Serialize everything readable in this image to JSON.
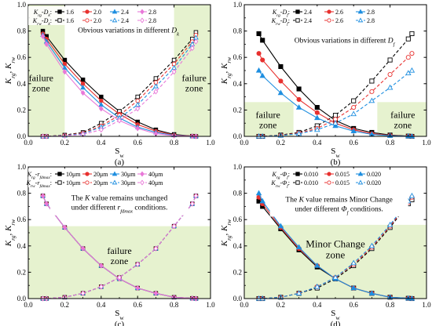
{
  "colors": {
    "zone_fill": "#e6f2cf",
    "axis": "#000000",
    "note_box": "#ffffff"
  },
  "chart_data": [
    {
      "id": "a",
      "type": "line",
      "caption": "(a)",
      "xlabel_main": "S",
      "xlabel_sub": "w",
      "ylabel": [
        [
          "K",
          "rg",
          ""
        ],
        [
          ", ",
          "",
          ""
        ],
        [
          "K",
          "rw",
          ""
        ]
      ],
      "xlim": [
        0,
        1
      ],
      "ylim": [
        0,
        1
      ],
      "xticks": [
        0.0,
        0.2,
        0.4,
        0.6,
        0.8,
        1.0
      ],
      "yticks": [
        0.0,
        0.2,
        0.4,
        0.6,
        0.8,
        1.0
      ],
      "zones": [
        {
          "x0": 0.0,
          "x1": 0.2,
          "y0": 0,
          "y1": 1
        },
        {
          "x0": 0.8,
          "x1": 1.0,
          "y0": 0,
          "y1": 1
        }
      ],
      "zone_labels": [
        {
          "lines": [
            "failure",
            "zone"
          ],
          "x": 0.07,
          "y": 0.42
        },
        {
          "lines": [
            "failure",
            "zone"
          ],
          "x": 0.91,
          "y": 0.42
        }
      ],
      "annotation": {
        "lines": [
          [
            [
              "Obvious variations in different ",
              "",
              ""
            ],
            [
              "D",
              "k",
              ""
            ]
          ]
        ],
        "x": 0.55,
        "y": 0.79,
        "box": false
      },
      "legend": {
        "rows": [
          [
            [
              "K",
              "rg",
              ""
            ],
            [
              "-",
              "",
              ""
            ],
            [
              "D",
              "k",
              ""
            ],
            [
              ":",
              "",
              ""
            ]
          ],
          [
            [
              "K",
              "rw",
              ""
            ],
            [
              "-",
              "",
              ""
            ],
            [
              "D",
              "k",
              ""
            ],
            [
              ":",
              "",
              ""
            ]
          ]
        ],
        "entries": [
          "1.6",
          "2.0",
          "2.4",
          "2.8"
        ],
        "colors": [
          "#000000",
          "#e8312f",
          "#1f8fe0",
          "#e878d8"
        ],
        "markers": [
          "square",
          "circle",
          "triangle",
          "diamond"
        ]
      },
      "x": [
        0.08,
        0.1,
        0.2,
        0.3,
        0.4,
        0.5,
        0.6,
        0.7,
        0.8,
        0.9,
        0.92
      ],
      "krg": [
        [
          0.8,
          0.76,
          0.58,
          0.43,
          0.3,
          0.19,
          0.11,
          0.05,
          0.015,
          0.002,
          0.0
        ],
        [
          0.78,
          0.74,
          0.55,
          0.4,
          0.27,
          0.17,
          0.09,
          0.04,
          0.01,
          0.002,
          0.0
        ],
        [
          0.77,
          0.72,
          0.52,
          0.37,
          0.24,
          0.14,
          0.07,
          0.03,
          0.008,
          0.001,
          0.0
        ],
        [
          0.76,
          0.7,
          0.49,
          0.33,
          0.21,
          0.12,
          0.06,
          0.02,
          0.005,
          0.001,
          0.0
        ]
      ],
      "krw": [
        [
          0.0,
          0.0,
          0.01,
          0.03,
          0.1,
          0.19,
          0.3,
          0.44,
          0.58,
          0.74,
          0.79
        ],
        [
          0.0,
          0.0,
          0.008,
          0.025,
          0.08,
          0.16,
          0.27,
          0.41,
          0.55,
          0.72,
          0.77
        ],
        [
          0.0,
          0.0,
          0.006,
          0.02,
          0.07,
          0.14,
          0.24,
          0.38,
          0.52,
          0.7,
          0.75
        ],
        [
          0.0,
          0.0,
          0.004,
          0.015,
          0.05,
          0.12,
          0.21,
          0.34,
          0.49,
          0.67,
          0.72
        ]
      ]
    },
    {
      "id": "b",
      "type": "line",
      "caption": "(b)",
      "xlabel_main": "S",
      "xlabel_sub": "w",
      "ylabel": [
        [
          "K",
          "rg",
          ""
        ],
        [
          ", ",
          "",
          ""
        ],
        [
          "K",
          "rw",
          ""
        ]
      ],
      "xlim": [
        0,
        1
      ],
      "ylim": [
        0,
        1
      ],
      "xticks": [
        0.0,
        0.2,
        0.4,
        0.6,
        0.8,
        1.0
      ],
      "yticks": [
        0.0,
        0.2,
        0.4,
        0.6,
        0.8,
        1.0
      ],
      "zones": [
        {
          "x0": 0.0,
          "x1": 0.27,
          "y0": 0,
          "y1": 0.26
        },
        {
          "x0": 0.73,
          "x1": 1.0,
          "y0": 0,
          "y1": 0.26
        }
      ],
      "zone_labels": [
        {
          "lines": [
            "failure",
            "zone"
          ],
          "x": 0.13,
          "y": 0.14
        },
        {
          "lines": [
            "failure",
            "zone"
          ],
          "x": 0.87,
          "y": 0.14
        }
      ],
      "annotation": {
        "lines": [
          [
            [
              "Obvious variations in different ",
              "",
              ""
            ],
            [
              "D",
              "f",
              ""
            ]
          ]
        ],
        "x": 0.55,
        "y": 0.71,
        "box": false
      },
      "legend": {
        "rows": [
          [
            [
              "K",
              "rg",
              ""
            ],
            [
              "-",
              "",
              ""
            ],
            [
              "D",
              "f",
              ""
            ],
            [
              ":",
              "",
              ""
            ]
          ],
          [
            [
              "K",
              "rw",
              ""
            ],
            [
              "-",
              "",
              ""
            ],
            [
              "D",
              "f",
              ""
            ],
            [
              ":",
              "",
              ""
            ]
          ]
        ],
        "entries": [
          "2.4",
          "2.6",
          "2.8"
        ],
        "colors": [
          "#000000",
          "#e8312f",
          "#1f8fe0"
        ],
        "markers": [
          "square",
          "circle",
          "triangle"
        ]
      },
      "x": [
        0.08,
        0.1,
        0.2,
        0.3,
        0.4,
        0.5,
        0.6,
        0.7,
        0.8,
        0.9,
        0.92
      ],
      "krg": [
        [
          0.78,
          0.73,
          0.53,
          0.36,
          0.22,
          0.12,
          0.06,
          0.03,
          0.01,
          0.002,
          0.0
        ],
        [
          0.63,
          0.58,
          0.42,
          0.28,
          0.18,
          0.1,
          0.05,
          0.02,
          0.007,
          0.001,
          0.0
        ],
        [
          0.5,
          0.46,
          0.33,
          0.22,
          0.14,
          0.08,
          0.04,
          0.015,
          0.005,
          0.001,
          0.0
        ]
      ],
      "krw": [
        [
          0.0,
          0.0,
          0.01,
          0.03,
          0.08,
          0.16,
          0.27,
          0.42,
          0.58,
          0.74,
          0.78
        ],
        [
          0.0,
          0.0,
          0.008,
          0.025,
          0.06,
          0.13,
          0.22,
          0.34,
          0.47,
          0.6,
          0.63
        ],
        [
          0.0,
          0.0,
          0.006,
          0.02,
          0.05,
          0.1,
          0.17,
          0.27,
          0.37,
          0.48,
          0.5
        ]
      ]
    },
    {
      "id": "c",
      "type": "line",
      "caption": "(c)",
      "xlabel_main": "S",
      "xlabel_sub": "w",
      "ylabel": [
        [
          "K",
          "rg",
          ""
        ],
        [
          ", ",
          "",
          ""
        ],
        [
          "K",
          "rw",
          ""
        ]
      ],
      "xlim": [
        0,
        1
      ],
      "ylim": [
        0,
        1
      ],
      "xticks": [
        0.0,
        0.2,
        0.4,
        0.6,
        0.8,
        1.0
      ],
      "yticks": [
        0.0,
        0.2,
        0.4,
        0.6,
        0.8,
        1.0
      ],
      "zones": [
        {
          "x0": 0.0,
          "x1": 1.0,
          "y0": 0,
          "y1": 0.55
        }
      ],
      "zone_labels": [
        {
          "lines": [
            "failure",
            "zone"
          ],
          "x": 0.5,
          "y": 0.34
        }
      ],
      "annotation": {
        "lines": [
          [
            [
              "The ",
              "",
              ""
            ],
            [
              "K",
              "",
              ""
            ],
            [
              " value remains unchanged",
              "",
              ""
            ]
          ],
          [
            [
              "under different ",
              "",
              ""
            ],
            [
              "r",
              "fdmax",
              ""
            ],
            [
              " conditions.",
              "",
              ""
            ]
          ]
        ],
        "x": 0.5,
        "y": 0.71,
        "box": true
      },
      "legend": {
        "rows": [
          [
            [
              "K",
              "rg",
              ""
            ],
            [
              "-",
              "",
              ""
            ],
            [
              "r",
              "fdmax",
              ""
            ],
            [
              ":",
              "",
              ""
            ]
          ],
          [
            [
              "K",
              "rw",
              ""
            ],
            [
              "-",
              "",
              ""
            ],
            [
              "r",
              "fdmax",
              ""
            ],
            [
              ":",
              "",
              ""
            ]
          ]
        ],
        "entries": [
          "10μm",
          "20μm",
          "30μm",
          "40μm"
        ],
        "colors": [
          "#000000",
          "#e8312f",
          "#1f8fe0",
          "#e878d8"
        ],
        "markers": [
          "square",
          "circle",
          "triangle",
          "diamond"
        ]
      },
      "x": [
        0.08,
        0.1,
        0.2,
        0.3,
        0.4,
        0.5,
        0.6,
        0.7,
        0.8,
        0.9,
        0.92
      ],
      "krg": [
        [
          0.78,
          0.72,
          0.54,
          0.38,
          0.25,
          0.15,
          0.08,
          0.04,
          0.01,
          0.002,
          0.0
        ],
        [
          0.78,
          0.72,
          0.54,
          0.38,
          0.25,
          0.15,
          0.08,
          0.04,
          0.01,
          0.002,
          0.0
        ],
        [
          0.78,
          0.72,
          0.54,
          0.38,
          0.25,
          0.15,
          0.08,
          0.04,
          0.01,
          0.002,
          0.0
        ],
        [
          0.78,
          0.72,
          0.54,
          0.38,
          0.25,
          0.15,
          0.08,
          0.04,
          0.01,
          0.002,
          0.0
        ]
      ],
      "krw": [
        [
          0.0,
          0.0,
          0.01,
          0.04,
          0.09,
          0.16,
          0.26,
          0.38,
          0.55,
          0.72,
          0.78
        ],
        [
          0.0,
          0.0,
          0.01,
          0.04,
          0.09,
          0.16,
          0.26,
          0.38,
          0.55,
          0.72,
          0.78
        ],
        [
          0.0,
          0.0,
          0.01,
          0.04,
          0.09,
          0.16,
          0.26,
          0.38,
          0.55,
          0.72,
          0.78
        ],
        [
          0.0,
          0.0,
          0.01,
          0.04,
          0.09,
          0.16,
          0.26,
          0.38,
          0.55,
          0.72,
          0.78
        ]
      ]
    },
    {
      "id": "d",
      "type": "line",
      "caption": "(d)",
      "xlabel_main": "S",
      "xlabel_sub": "w",
      "ylabel": [
        [
          "K",
          "rg",
          ""
        ],
        [
          ", ",
          "",
          ""
        ],
        [
          "K",
          "rw",
          ""
        ]
      ],
      "xlim": [
        0,
        1
      ],
      "ylim": [
        0,
        1
      ],
      "xticks": [
        0.0,
        0.2,
        0.4,
        0.6,
        0.8,
        1.0
      ],
      "yticks": [
        0.0,
        0.2,
        0.4,
        0.6,
        0.8,
        1.0
      ],
      "zones": [
        {
          "x0": 0.0,
          "x1": 1.0,
          "y0": 0,
          "y1": 0.56
        }
      ],
      "zone_labels": [
        {
          "lines": [
            "Minor Change",
            "zone"
          ],
          "x": 0.5,
          "y": 0.39,
          "size": 13
        }
      ],
      "annotation": {
        "lines": [
          [
            [
              "The ",
              "",
              ""
            ],
            [
              "K",
              "",
              ""
            ],
            [
              " value remains Minor Change",
              "",
              ""
            ]
          ],
          [
            [
              "under different ",
              "",
              ""
            ],
            [
              "Φ",
              "f",
              ""
            ],
            [
              " conditions.",
              "",
              ""
            ]
          ]
        ],
        "x": 0.52,
        "y": 0.7,
        "box": true
      },
      "legend": {
        "rows": [
          [
            [
              "K",
              "rg",
              ""
            ],
            [
              "-",
              "",
              ""
            ],
            [
              "Φ",
              "f",
              ""
            ],
            [
              ":",
              "",
              ""
            ]
          ],
          [
            [
              "K",
              "rw",
              ""
            ],
            [
              "-",
              "",
              ""
            ],
            [
              "Φ",
              "f",
              ""
            ],
            [
              ":",
              "",
              ""
            ]
          ]
        ],
        "entries": [
          "0.010",
          "0.015",
          "0.020"
        ],
        "colors": [
          "#000000",
          "#e8312f",
          "#1f8fe0"
        ],
        "markers": [
          "square",
          "circle",
          "triangle"
        ]
      },
      "x": [
        0.08,
        0.1,
        0.2,
        0.3,
        0.4,
        0.5,
        0.6,
        0.7,
        0.8,
        0.9,
        0.92
      ],
      "krg": [
        [
          0.74,
          0.7,
          0.53,
          0.37,
          0.24,
          0.15,
          0.08,
          0.04,
          0.01,
          0.002,
          0.0
        ],
        [
          0.77,
          0.72,
          0.54,
          0.38,
          0.25,
          0.15,
          0.08,
          0.04,
          0.01,
          0.002,
          0.0
        ],
        [
          0.8,
          0.74,
          0.55,
          0.39,
          0.25,
          0.15,
          0.08,
          0.04,
          0.01,
          0.002,
          0.0
        ]
      ],
      "krw": [
        [
          0.0,
          0.0,
          0.01,
          0.04,
          0.08,
          0.15,
          0.25,
          0.38,
          0.54,
          0.72,
          0.75
        ],
        [
          0.0,
          0.0,
          0.01,
          0.04,
          0.09,
          0.16,
          0.26,
          0.39,
          0.55,
          0.73,
          0.77
        ],
        [
          0.0,
          0.0,
          0.01,
          0.04,
          0.09,
          0.16,
          0.27,
          0.4,
          0.56,
          0.74,
          0.78
        ]
      ]
    }
  ]
}
